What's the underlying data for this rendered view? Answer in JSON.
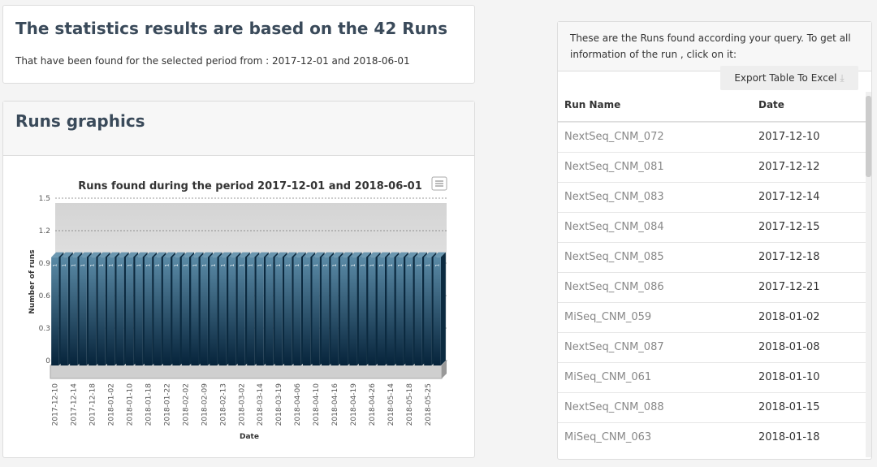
{
  "summary": {
    "title": "The statistics results are based on the 42 Runs",
    "subtitle": "That have been found for the selected period from : 2017-12-01 and 2018-06-01"
  },
  "graphics": {
    "title": "Runs graphics"
  },
  "runs_panel": {
    "intro": "These are the Runs found according your query. To get all information of the run , click on it:",
    "export_button": "Export Table To Excel"
  },
  "table": {
    "columns": [
      "Run Name",
      "Date"
    ],
    "rows": [
      [
        "NextSeq_CNM_072",
        "2017-12-10"
      ],
      [
        "NextSeq_CNM_081",
        "2017-12-12"
      ],
      [
        "NextSeq_CNM_083",
        "2017-12-14"
      ],
      [
        "NextSeq_CNM_084",
        "2017-12-15"
      ],
      [
        "NextSeq_CNM_085",
        "2017-12-18"
      ],
      [
        "NextSeq_CNM_086",
        "2017-12-21"
      ],
      [
        "MiSeq_CNM_059",
        "2018-01-02"
      ],
      [
        "NextSeq_CNM_087",
        "2018-01-08"
      ],
      [
        "MiSeq_CNM_061",
        "2018-01-10"
      ],
      [
        "NextSeq_CNM_088",
        "2018-01-15"
      ],
      [
        "MiSeq_CNM_063",
        "2018-01-18"
      ]
    ]
  },
  "chart_data": {
    "type": "bar",
    "title": "Runs found during the period 2017-12-01 and 2018-06-01",
    "x_label": "Date",
    "y_label": "Number of runs",
    "categories": [
      "2017-12-10",
      null,
      "2017-12-14",
      null,
      "2017-12-18",
      null,
      "2018-01-02",
      null,
      "2018-01-10",
      null,
      "2018-01-18",
      null,
      "2018-01-22",
      null,
      "2018-02-02",
      null,
      "2018-02-09",
      null,
      "2018-02-13",
      null,
      "2018-03-02",
      null,
      "2018-03-14",
      null,
      "2018-03-19",
      null,
      "2018-04-06",
      null,
      "2018-04-10",
      null,
      "2018-04-16",
      null,
      "2018-04-19",
      null,
      "2018-04-26",
      null,
      "2018-05-14",
      null,
      "2018-05-18",
      null,
      "2018-05-25",
      null
    ],
    "values": [
      1,
      1,
      1,
      1,
      1,
      1,
      1,
      1,
      1,
      1,
      1,
      1,
      1,
      1,
      1,
      1,
      1,
      1,
      1,
      1,
      1,
      1,
      1,
      1,
      1,
      1,
      1,
      1,
      1,
      1,
      1,
      1,
      1,
      1,
      1,
      1,
      1,
      1,
      1,
      1,
      1,
      1
    ],
    "color": "#1d4a66",
    "ylim": [
      0,
      1.5
    ],
    "yticks": [
      0,
      0.3,
      0.6,
      0.9,
      1.2,
      1.5
    ],
    "grid": true
  }
}
